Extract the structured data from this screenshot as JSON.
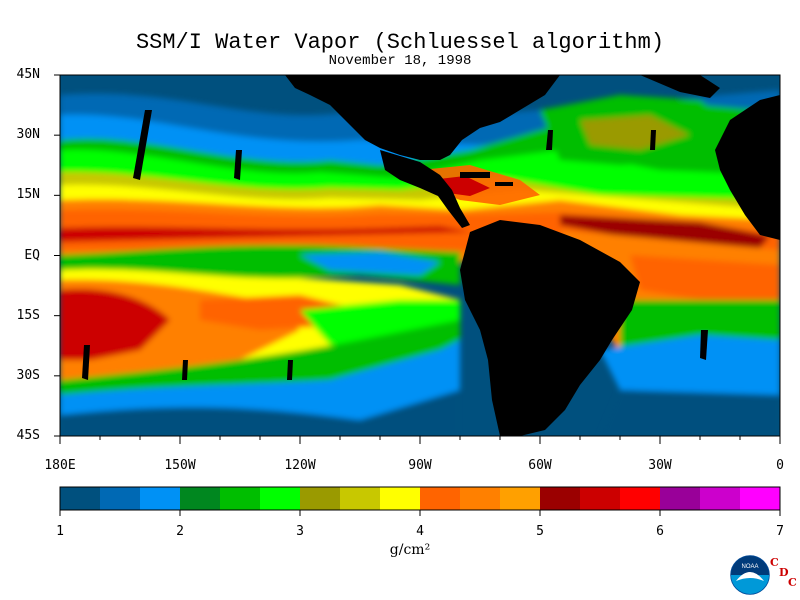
{
  "title": "SSM/I Water Vapor (Schluessel algorithm)",
  "date": "November 18, 1998",
  "map": {
    "lat_labels": [
      "45N",
      "30N",
      "15N",
      "EQ",
      "15S",
      "30S",
      "45S"
    ],
    "lon_labels": [
      "180E",
      "150W",
      "120W",
      "90W",
      "60W",
      "30W",
      "0"
    ]
  },
  "colorbar": {
    "ticks": [
      "1",
      "2",
      "3",
      "4",
      "5",
      "6",
      "7"
    ],
    "unit": "g/cm²",
    "colors": [
      "#00507e",
      "#0069b4",
      "#0091f5",
      "#00871f",
      "#00be00",
      "#00ff00",
      "#9a9a00",
      "#c8c800",
      "#ffff00",
      "#ff6400",
      "#ff8000",
      "#ffa000",
      "#9b0000",
      "#cc0000",
      "#ff0000",
      "#990099",
      "#cc00cc",
      "#ff00ff"
    ]
  },
  "logo": {
    "name": "NOAA",
    "cdc_letters": [
      "C",
      "D",
      "C"
    ]
  }
}
